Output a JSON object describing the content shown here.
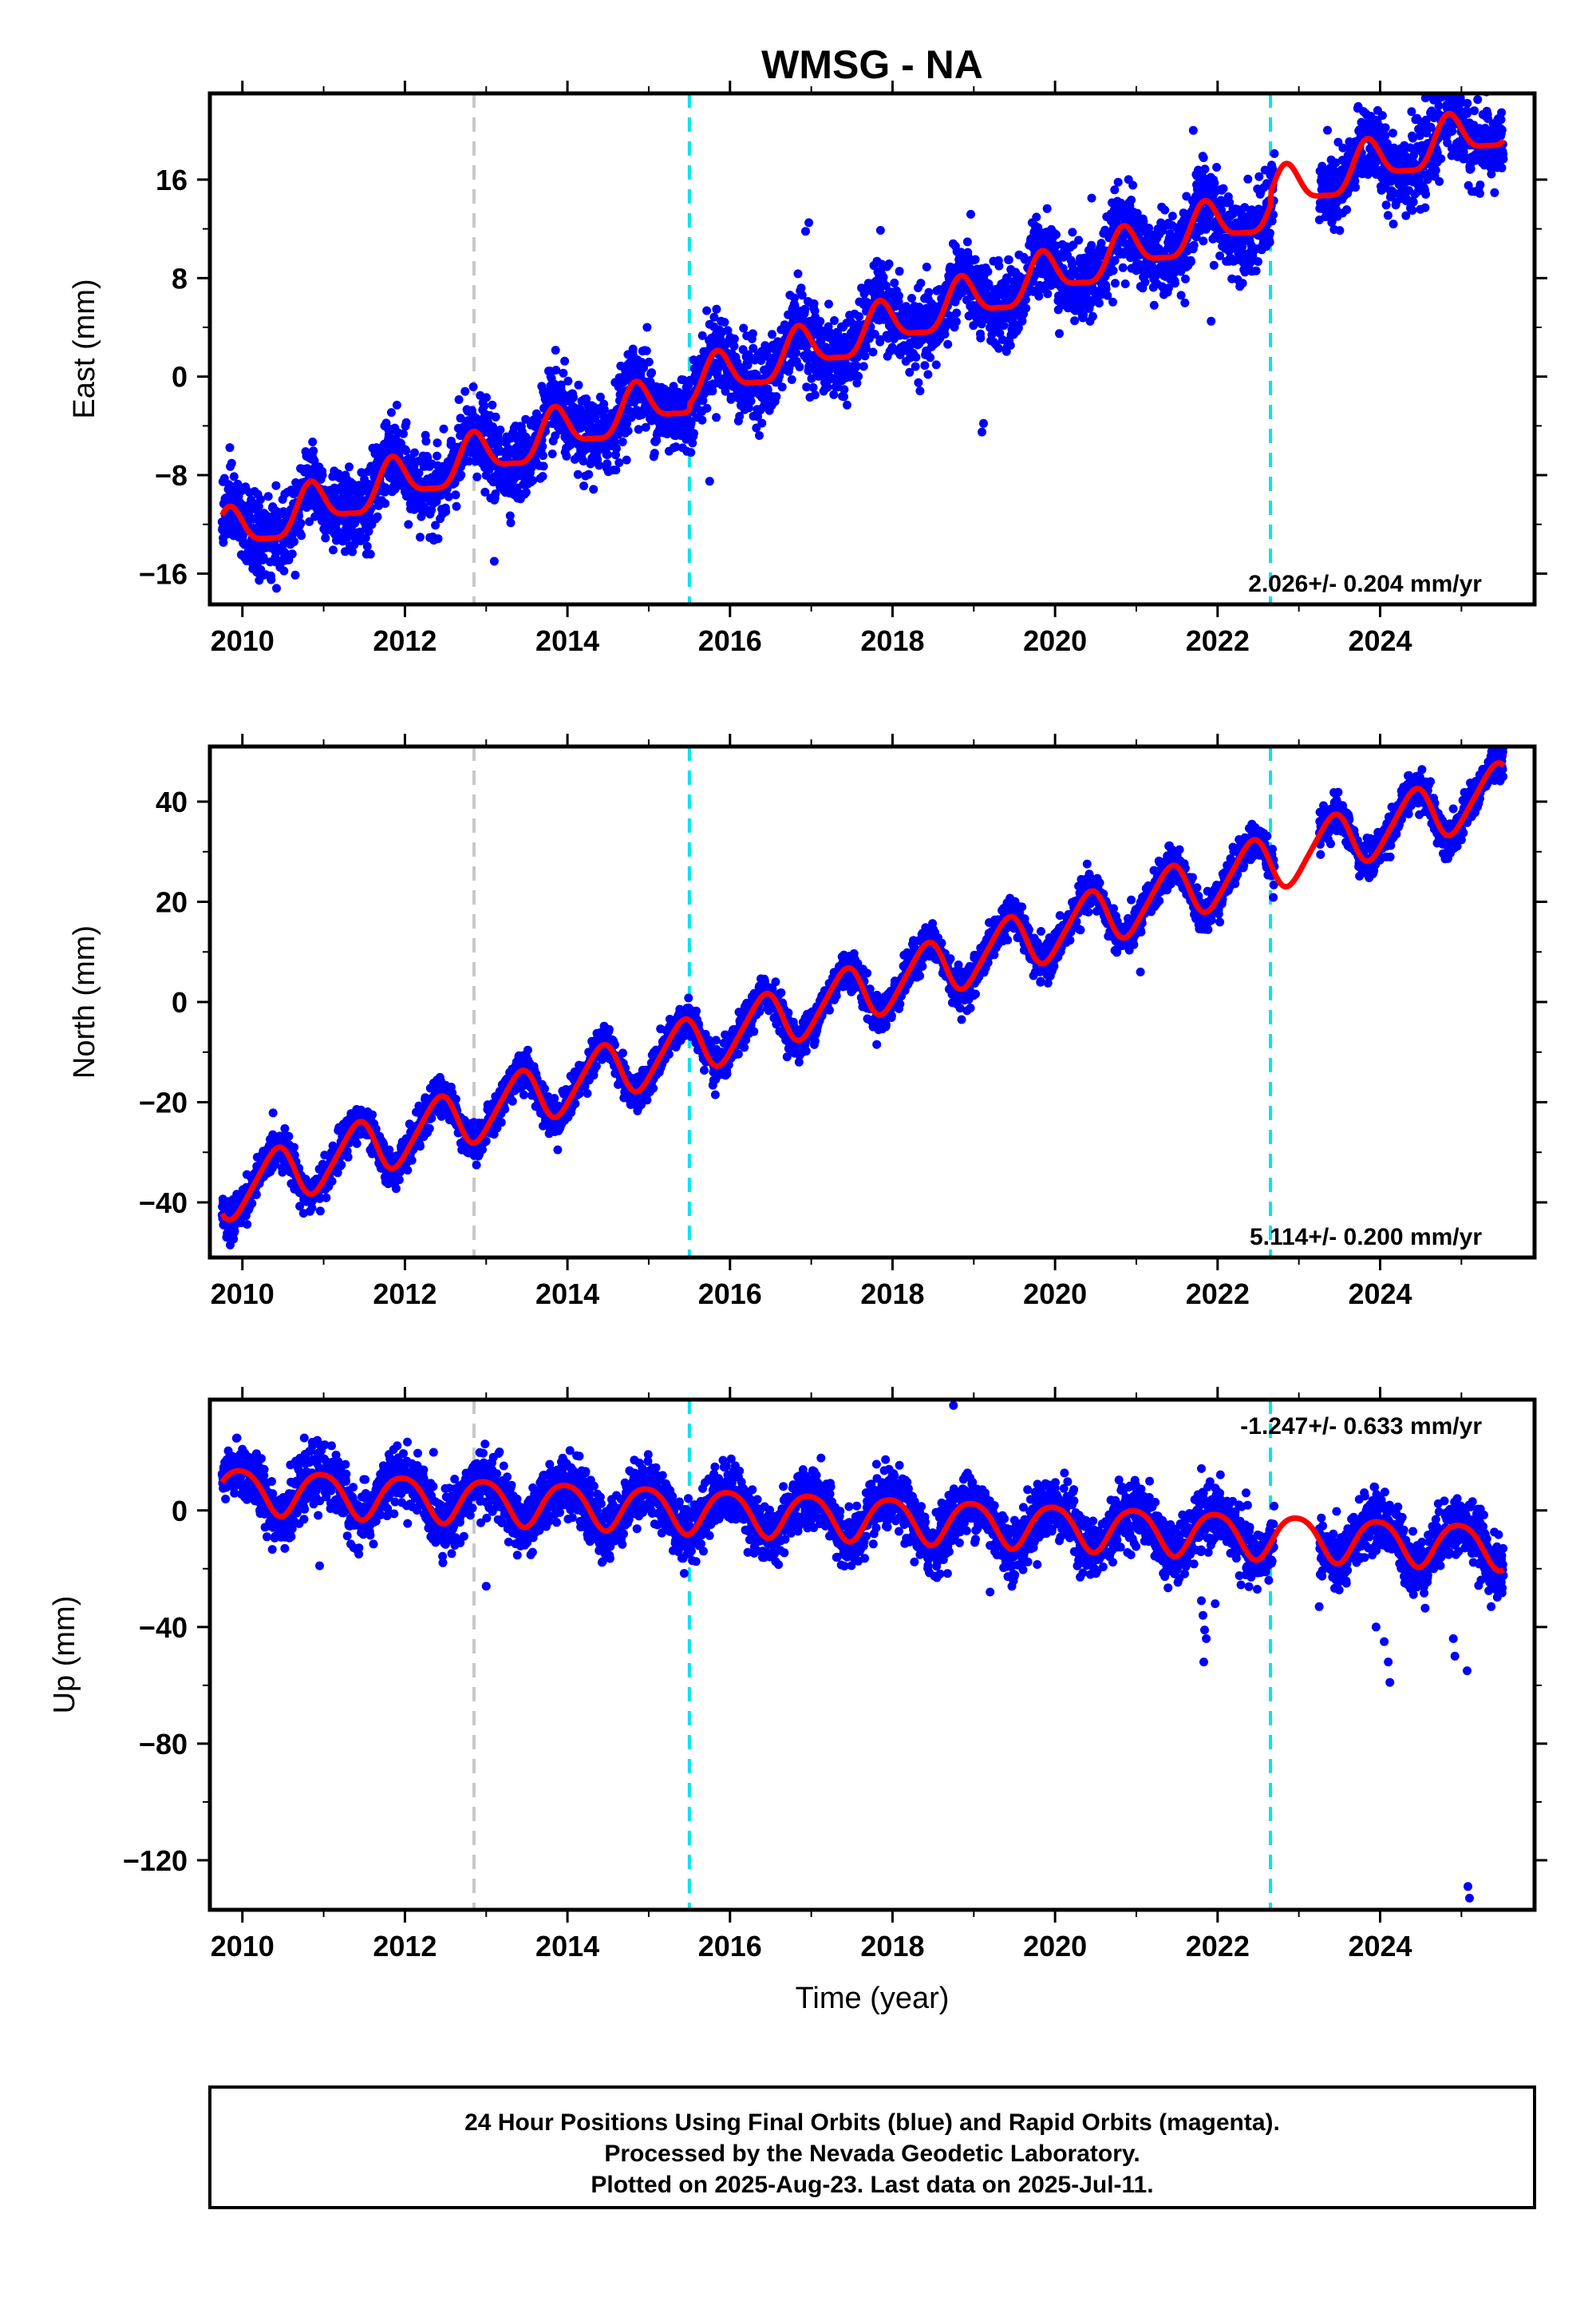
{
  "title": "WMSG - NA",
  "footer": {
    "line1": "24 Hour Positions Using Final Orbits (blue) and Rapid Orbits (magenta).",
    "line2": "Processed by the Nevada Geodetic Laboratory.",
    "line3": "Plotted on 2025-Aug-23. Last data on 2025-Jul-11."
  },
  "colors": {
    "data_points": "#0000ff",
    "model_fit": "#ff0000",
    "offset_antenna": "#00e5ee",
    "offset_other": "#c8c8c8",
    "frame": "#000000"
  },
  "x_axis": {
    "label": "Time (year)",
    "range": [
      2009.6,
      2025.9
    ],
    "ticks": [
      "2010",
      "2012",
      "2014",
      "2016",
      "2018",
      "2020",
      "2022",
      "2024"
    ],
    "tick_values": [
      2010,
      2012,
      2014,
      2016,
      2018,
      2020,
      2022,
      2024
    ]
  },
  "offset_lines": [
    {
      "x": 2012.85,
      "kind": "other"
    },
    {
      "x": 2015.5,
      "kind": "antenna"
    },
    {
      "x": 2022.65,
      "kind": "antenna"
    }
  ],
  "chart_data": [
    {
      "type": "scatter",
      "component": "east",
      "ylabel": "East (mm)",
      "ylim": [
        -18.5,
        23
      ],
      "yticks": [
        "16",
        "8",
        "0",
        "−8",
        "−16"
      ],
      "ytick_values": [
        16,
        8,
        0,
        -8,
        -16
      ],
      "rate_label": "2.026+/- 0.204 mm/yr",
      "rate_position": "bottom-right",
      "velocity_mm_per_yr": 2.026,
      "model": {
        "intercept_at_2010": -12.5,
        "annual_amp": 1.8,
        "annual_phase": 0.6,
        "semi_amp": 0.5,
        "semi_phase": 0.2,
        "steps": [
          {
            "x": 2015.5,
            "dy": 0.5
          },
          {
            "x": 2022.65,
            "dy": 1.0
          }
        ]
      },
      "noise_mm": 1.6,
      "outliers": [
        {
          "x": 2016.97,
          "y": 12.5
        },
        {
          "x": 2016.93,
          "y": 11.8
        },
        {
          "x": 2021.7,
          "y": 20.0
        },
        {
          "x": 2025.2,
          "y": 22.5
        },
        {
          "x": 2019.1,
          "y": -4.5
        },
        {
          "x": 2019.12,
          "y": -3.8
        },
        {
          "x": 2013.1,
          "y": -15.0
        },
        {
          "x": 2015.75,
          "y": -8.5
        },
        {
          "x": 2021.92,
          "y": 4.5
        },
        {
          "x": 2014.98,
          "y": 4.0
        },
        {
          "x": 2020.45,
          "y": 14.5
        }
      ]
    },
    {
      "type": "scatter",
      "component": "north",
      "ylabel": "North (mm)",
      "ylim": [
        -51,
        51
      ],
      "yticks": [
        "40",
        "20",
        "0",
        "−20",
        "−40"
      ],
      "ytick_values": [
        40,
        20,
        0,
        -20,
        -40
      ],
      "rate_label": "5.114+/- 0.200 mm/yr",
      "rate_position": "bottom-right",
      "velocity_mm_per_yr": 5.114,
      "model": {
        "intercept_at_2010": -37.0,
        "annual_amp": 5.5,
        "annual_phase": 0.15,
        "semi_amp": 0.8,
        "semi_phase": 0.4,
        "steps": []
      },
      "noise_mm": 1.8,
      "outliers": [
        {
          "x": 2009.85,
          "y": -48.5
        },
        {
          "x": 2009.9,
          "y": -46.0
        },
        {
          "x": 2013.88,
          "y": -29.5
        },
        {
          "x": 2018.85,
          "y": -3.5
        },
        {
          "x": 2021.05,
          "y": 6.0
        },
        {
          "x": 2024.62,
          "y": 44.0
        },
        {
          "x": 2025.5,
          "y": 49.0
        },
        {
          "x": 2015.82,
          "y": -18.5
        }
      ]
    },
    {
      "type": "scatter",
      "component": "up",
      "ylabel": "Up (mm)",
      "ylim": [
        -137,
        38
      ],
      "yticks": [
        "0",
        "−40",
        "−80",
        "−120"
      ],
      "ytick_values": [
        0,
        -40,
        -80,
        -120
      ],
      "rate_label": "-1.247+/- 0.633 mm/yr",
      "rate_position": "top-right",
      "velocity_mm_per_yr": -1.247,
      "model": {
        "intercept_at_2010": 7.0,
        "annual_amp": 7.5,
        "annual_phase": 0.72,
        "semi_amp": 1.0,
        "semi_phase": 0.1,
        "steps": []
      },
      "noise_mm": 5.0,
      "outliers": [
        {
          "x": 2018.75,
          "y": 36.0
        },
        {
          "x": 2013.0,
          "y": -26.0
        },
        {
          "x": 2021.8,
          "y": -31.0
        },
        {
          "x": 2021.82,
          "y": -36.0
        },
        {
          "x": 2021.84,
          "y": -41.0
        },
        {
          "x": 2021.86,
          "y": -44.0
        },
        {
          "x": 2021.83,
          "y": -52.0
        },
        {
          "x": 2021.97,
          "y": -32.0
        },
        {
          "x": 2023.95,
          "y": -40.0
        },
        {
          "x": 2024.05,
          "y": -45.0
        },
        {
          "x": 2024.1,
          "y": -52.0
        },
        {
          "x": 2024.12,
          "y": -59.0
        },
        {
          "x": 2024.9,
          "y": -44.0
        },
        {
          "x": 2024.92,
          "y": -50.0
        },
        {
          "x": 2025.07,
          "y": -55.0
        },
        {
          "x": 2025.08,
          "y": -129.0
        },
        {
          "x": 2025.1,
          "y": -133.0
        },
        {
          "x": 2023.25,
          "y": -33.0
        },
        {
          "x": 2019.2,
          "y": -28.0
        },
        {
          "x": 2010.95,
          "y": -19.0
        },
        {
          "x": 2022.35,
          "y": 6.0
        }
      ]
    }
  ]
}
